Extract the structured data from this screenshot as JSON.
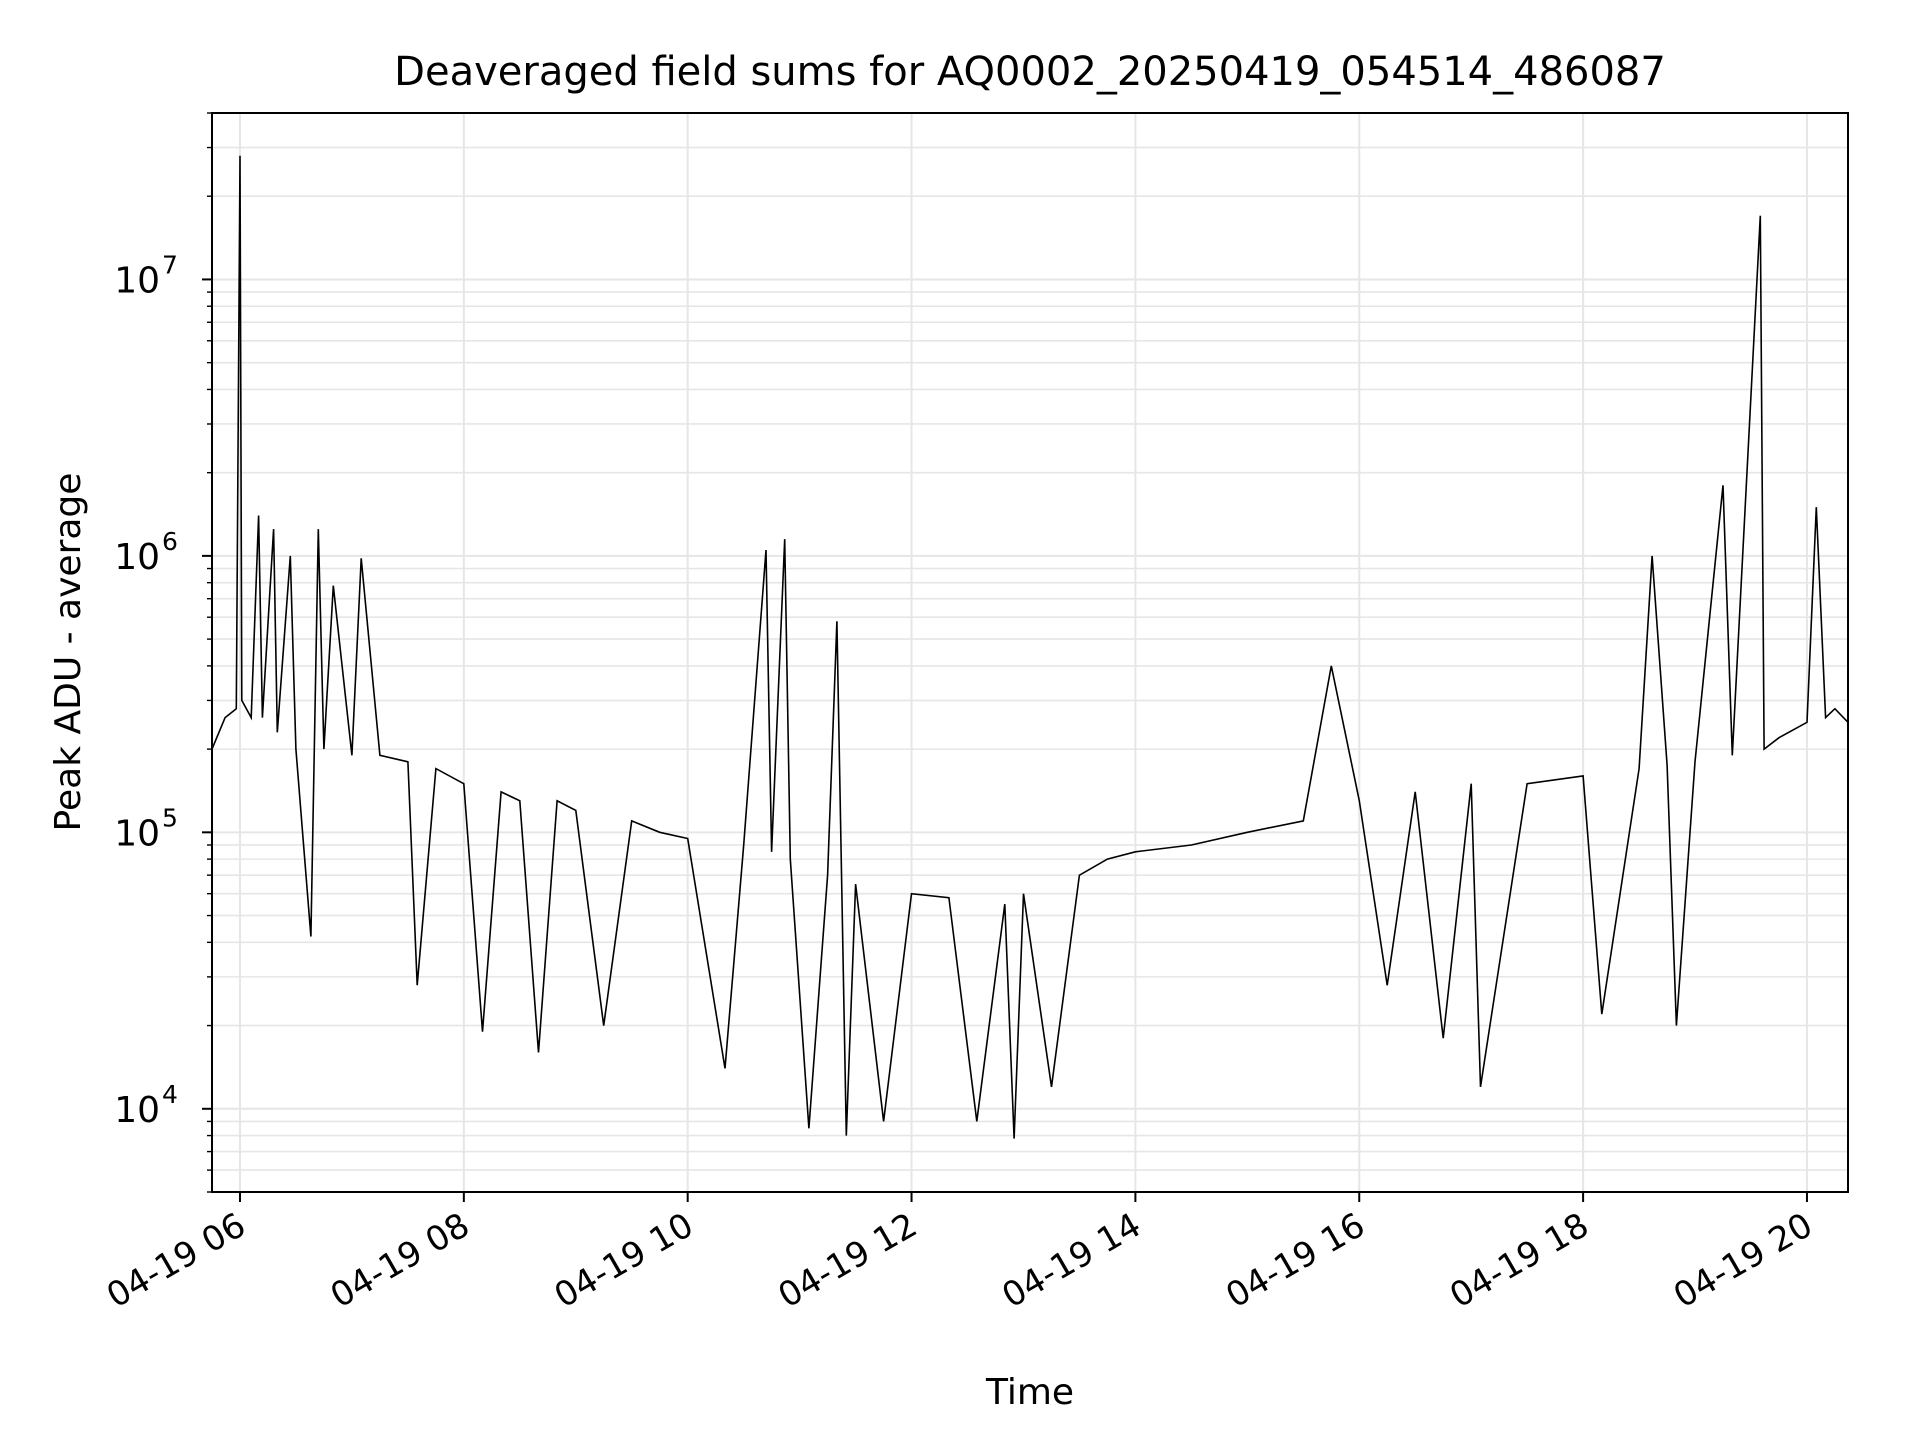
{
  "chart_data": {
    "type": "line",
    "title": "Deaveraged field sums for AQ0002_20250419_054514_486087",
    "xlabel": "Time",
    "ylabel": "Peak ADU - average",
    "yscale": "log",
    "grid": true,
    "ylim": [
      5000,
      40000000
    ],
    "xlim": [
      "2025-04-19T05:45:00",
      "2025-04-19T20:22:00"
    ],
    "x_ticks": [
      "2025-04-19T06:00:00",
      "2025-04-19T08:00:00",
      "2025-04-19T10:00:00",
      "2025-04-19T12:00:00",
      "2025-04-19T14:00:00",
      "2025-04-19T16:00:00",
      "2025-04-19T18:00:00",
      "2025-04-19T20:00:00"
    ],
    "x_tick_labels": [
      "04-19 06",
      "04-19 08",
      "04-19 10",
      "04-19 12",
      "04-19 14",
      "04-19 16",
      "04-19 18",
      "04-19 20"
    ],
    "y_ticks": [
      10000,
      100000,
      1000000,
      10000000
    ],
    "y_tick_labels": [
      {
        "base": "10",
        "exp": "4"
      },
      {
        "base": "10",
        "exp": "5"
      },
      {
        "base": "10",
        "exp": "6"
      },
      {
        "base": "10",
        "exp": "7"
      }
    ],
    "series": [
      {
        "color": "#000000",
        "points": [
          [
            "2025-04-19T05:45:00",
            200000
          ],
          [
            "2025-04-19T05:52:00",
            260000
          ],
          [
            "2025-04-19T05:58:00",
            280000
          ],
          [
            "2025-04-19T06:00:00",
            28000000
          ],
          [
            "2025-04-19T06:01:00",
            300000
          ],
          [
            "2025-04-19T06:06:00",
            260000
          ],
          [
            "2025-04-19T06:10:00",
            1400000
          ],
          [
            "2025-04-19T06:12:00",
            260000
          ],
          [
            "2025-04-19T06:18:00",
            1250000
          ],
          [
            "2025-04-19T06:20:00",
            230000
          ],
          [
            "2025-04-19T06:27:00",
            1000000
          ],
          [
            "2025-04-19T06:30:00",
            200000
          ],
          [
            "2025-04-19T06:38:00",
            42000
          ],
          [
            "2025-04-19T06:42:00",
            1250000
          ],
          [
            "2025-04-19T06:45:00",
            200000
          ],
          [
            "2025-04-19T06:50:00",
            780000
          ],
          [
            "2025-04-19T07:00:00",
            190000
          ],
          [
            "2025-04-19T07:05:00",
            980000
          ],
          [
            "2025-04-19T07:15:00",
            190000
          ],
          [
            "2025-04-19T07:30:00",
            180000
          ],
          [
            "2025-04-19T07:35:00",
            28000
          ],
          [
            "2025-04-19T07:45:00",
            170000
          ],
          [
            "2025-04-19T08:00:00",
            150000
          ],
          [
            "2025-04-19T08:10:00",
            19000
          ],
          [
            "2025-04-19T08:20:00",
            140000
          ],
          [
            "2025-04-19T08:30:00",
            130000
          ],
          [
            "2025-04-19T08:40:00",
            16000
          ],
          [
            "2025-04-19T08:50:00",
            130000
          ],
          [
            "2025-04-19T09:00:00",
            120000
          ],
          [
            "2025-04-19T09:15:00",
            20000
          ],
          [
            "2025-04-19T09:30:00",
            110000
          ],
          [
            "2025-04-19T09:45:00",
            100000
          ],
          [
            "2025-04-19T10:00:00",
            95000
          ],
          [
            "2025-04-19T10:20:00",
            14000
          ],
          [
            "2025-04-19T10:30:00",
            90000
          ],
          [
            "2025-04-19T10:42:00",
            1050000
          ],
          [
            "2025-04-19T10:45:00",
            85000
          ],
          [
            "2025-04-19T10:52:00",
            1150000
          ],
          [
            "2025-04-19T10:55:00",
            80000
          ],
          [
            "2025-04-19T11:05:00",
            8500
          ],
          [
            "2025-04-19T11:15:00",
            70000
          ],
          [
            "2025-04-19T11:20:00",
            580000
          ],
          [
            "2025-04-19T11:25:00",
            8000
          ],
          [
            "2025-04-19T11:30:00",
            65000
          ],
          [
            "2025-04-19T11:45:00",
            9000
          ],
          [
            "2025-04-19T12:00:00",
            60000
          ],
          [
            "2025-04-19T12:20:00",
            58000
          ],
          [
            "2025-04-19T12:35:00",
            9000
          ],
          [
            "2025-04-19T12:50:00",
            55000
          ],
          [
            "2025-04-19T12:55:00",
            7800
          ],
          [
            "2025-04-19T13:00:00",
            60000
          ],
          [
            "2025-04-19T13:15:00",
            12000
          ],
          [
            "2025-04-19T13:30:00",
            70000
          ],
          [
            "2025-04-19T13:45:00",
            80000
          ],
          [
            "2025-04-19T14:00:00",
            85000
          ],
          [
            "2025-04-19T14:30:00",
            90000
          ],
          [
            "2025-04-19T15:00:00",
            100000
          ],
          [
            "2025-04-19T15:30:00",
            110000
          ],
          [
            "2025-04-19T15:45:00",
            400000
          ],
          [
            "2025-04-19T16:00:00",
            130000
          ],
          [
            "2025-04-19T16:15:00",
            28000
          ],
          [
            "2025-04-19T16:30:00",
            140000
          ],
          [
            "2025-04-19T16:45:00",
            18000
          ],
          [
            "2025-04-19T17:00:00",
            150000
          ],
          [
            "2025-04-19T17:05:00",
            12000
          ],
          [
            "2025-04-19T17:30:00",
            150000
          ],
          [
            "2025-04-19T18:00:00",
            160000
          ],
          [
            "2025-04-19T18:10:00",
            22000
          ],
          [
            "2025-04-19T18:30:00",
            170000
          ],
          [
            "2025-04-19T18:37:00",
            1000000
          ],
          [
            "2025-04-19T18:45:00",
            175000
          ],
          [
            "2025-04-19T18:50:00",
            20000
          ],
          [
            "2025-04-19T19:00:00",
            180000
          ],
          [
            "2025-04-19T19:15:00",
            1800000
          ],
          [
            "2025-04-19T19:20:00",
            190000
          ],
          [
            "2025-04-19T19:35:00",
            17000000
          ],
          [
            "2025-04-19T19:37:00",
            200000
          ],
          [
            "2025-04-19T19:45:00",
            220000
          ],
          [
            "2025-04-19T20:00:00",
            250000
          ],
          [
            "2025-04-19T20:05:00",
            1500000
          ],
          [
            "2025-04-19T20:10:00",
            260000
          ],
          [
            "2025-04-19T20:15:00",
            280000
          ],
          [
            "2025-04-19T20:22:00",
            250000
          ]
        ]
      }
    ]
  }
}
